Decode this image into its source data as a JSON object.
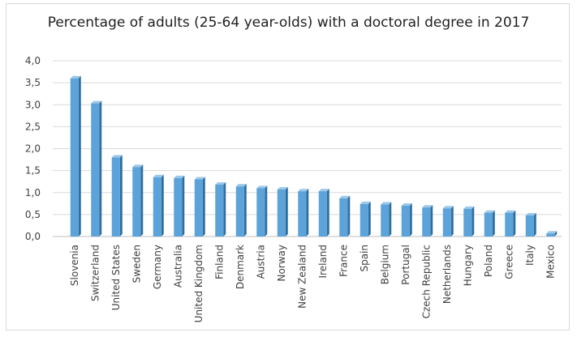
{
  "chart_data": {
    "type": "bar",
    "title": "Percentage of adults (25-64 year-olds) with a doctoral degree in 2017",
    "xlabel": "",
    "ylabel": "",
    "ylim": [
      0,
      4
    ],
    "yticks": [
      "0,0",
      "0,5",
      "1,0",
      "1,5",
      "2,0",
      "2,5",
      "3,0",
      "3,5",
      "4,0"
    ],
    "grid": true,
    "categories": [
      "Slovenia",
      "Switzerland",
      "United States",
      "Sweden",
      "Germany",
      "Australia",
      "United Kingdom",
      "Finland",
      "Denmark",
      "Austria",
      "Norway",
      "New Zealand",
      "Ireland",
      "France",
      "Spain",
      "Belgium",
      "Portugal",
      "Czech Republic",
      "Netherlands",
      "Hungary",
      "Poland",
      "Greece",
      "Italy",
      "Mexico"
    ],
    "values": [
      3.6,
      3.03,
      1.8,
      1.58,
      1.35,
      1.33,
      1.3,
      1.18,
      1.14,
      1.1,
      1.07,
      1.03,
      1.03,
      0.87,
      0.74,
      0.73,
      0.7,
      0.66,
      0.64,
      0.63,
      0.54,
      0.54,
      0.48,
      0.07
    ],
    "bar_color": "#5ba3d9",
    "bar_side_color": "#2f6f9f",
    "bar_top_color": "#9cc8ea"
  }
}
